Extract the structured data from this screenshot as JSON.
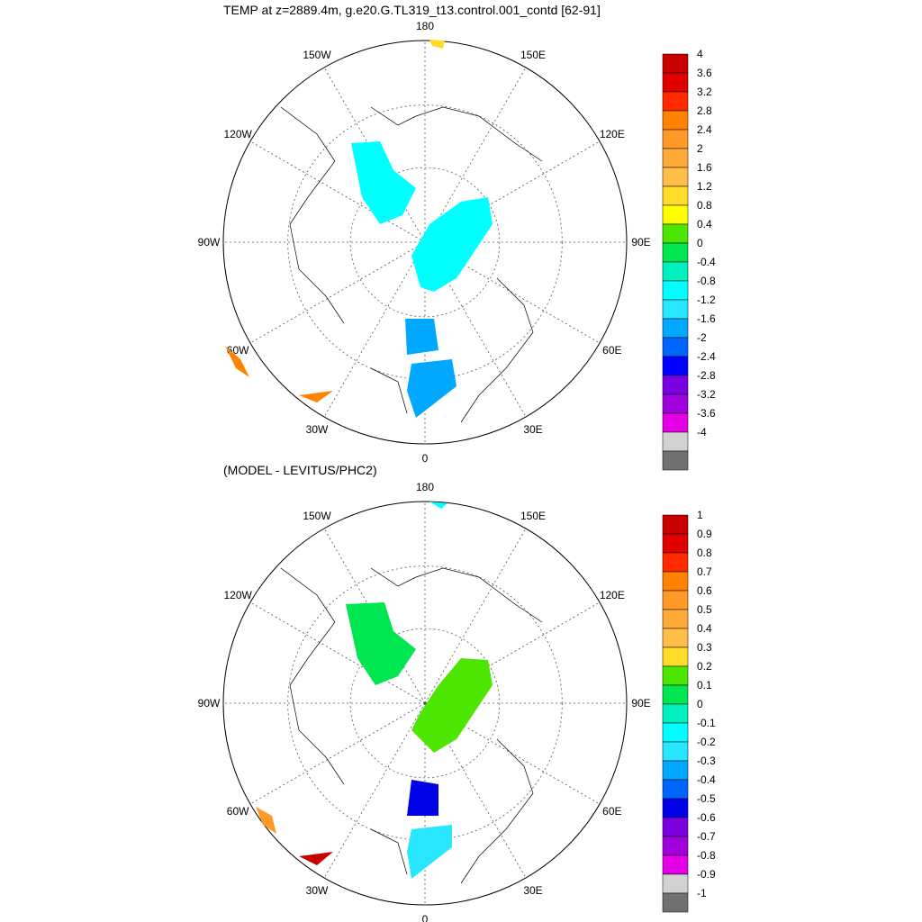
{
  "chart_data": [
    {
      "type": "heatmap",
      "projection": "polar-stereographic",
      "title": "TEMP at z=2889.4m, g.e20.G.TL319_t13.control.001_contd [62-91]",
      "lon_labels": [
        "180",
        "150E",
        "120E",
        "90E",
        "60E",
        "30E",
        "0",
        "30W",
        "60W",
        "90W",
        "120W",
        "150W"
      ],
      "colorbar": {
        "labels": [
          "4",
          "3.6",
          "3.2",
          "2.8",
          "2.4",
          "2",
          "1.6",
          "1.2",
          "0.8",
          "0.4",
          "0",
          "-0.4",
          "-0.8",
          "-1.2",
          "-1.6",
          "-2",
          "-2.4",
          "-2.8",
          "-3.2",
          "-3.6",
          "-4"
        ],
        "colors": [
          "#c80000",
          "#e00000",
          "#ff2a00",
          "#ff8200",
          "#ff9a28",
          "#ffaa38",
          "#ffbe4a",
          "#ffdc2a",
          "#ffff00",
          "#4ce600",
          "#00e650",
          "#00f0c0",
          "#00ffff",
          "#28e6ff",
          "#00a8ff",
          "#0064ff",
          "#0000ff",
          "#7a00e0",
          "#a000dc",
          "#e600e6",
          "#d2d2d2",
          "#707070"
        ]
      }
    },
    {
      "type": "heatmap",
      "projection": "polar-stereographic",
      "title": "(MODEL - LEVITUS/PHC2)",
      "lon_labels": [
        "180",
        "150E",
        "120E",
        "90E",
        "60E",
        "30E",
        "0",
        "30W",
        "60W",
        "90W",
        "120W",
        "150W"
      ],
      "colorbar": {
        "labels": [
          "1",
          "0.9",
          "0.8",
          "0.7",
          "0.6",
          "0.5",
          "0.4",
          "0.3",
          "0.2",
          "0.1",
          "0",
          "-0.1",
          "-0.2",
          "-0.3",
          "-0.4",
          "-0.5",
          "-0.6",
          "-0.7",
          "-0.8",
          "-0.9",
          "-1"
        ],
        "colors": [
          "#c80000",
          "#e00000",
          "#ff2a00",
          "#ff8200",
          "#ff9a28",
          "#ffaa38",
          "#ffbe4a",
          "#ffdc2a",
          "#4ce600",
          "#00e650",
          "#00f0c0",
          "#00ffff",
          "#28e6ff",
          "#00a8ff",
          "#0064ff",
          "#0000e6",
          "#7a00e0",
          "#a000dc",
          "#e600e6",
          "#d2d2d2",
          "#707070"
        ]
      }
    }
  ]
}
